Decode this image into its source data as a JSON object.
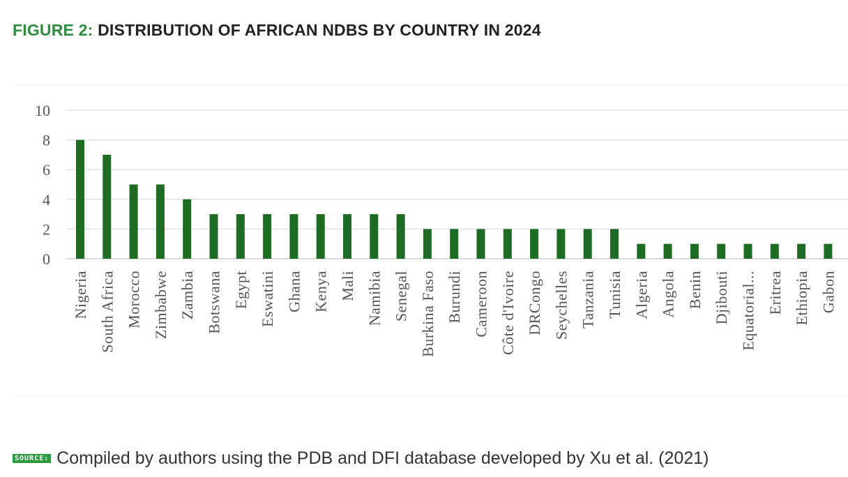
{
  "title": {
    "prefix": "FIGURE 2:",
    "text": "DISTRIBUTION OF AFRICAN NDBS BY COUNTRY IN 2024"
  },
  "source": {
    "label": "SOURCE:",
    "text": "Compiled by authors using the PDB and DFI database developed by Xu et al. (2021)"
  },
  "chart_data": {
    "type": "bar",
    "title": "",
    "xlabel": "",
    "ylabel": "",
    "ylim": [
      0,
      10
    ],
    "yticks": [
      0,
      2,
      4,
      6,
      8,
      10
    ],
    "grid": true,
    "bar_color": "#1e6b23",
    "categories": [
      "Nigeria",
      "South Africa",
      "Morocco",
      "Zimbabwe",
      "Zambia",
      "Botswana",
      "Egypt",
      "Eswatini",
      "Ghana",
      "Kenya",
      "Mali",
      "Namibia",
      "Senegal",
      "Burkina Faso",
      "Burundi",
      "Cameroon",
      "Côte d'Ivoire",
      "DRCongo",
      "Seychelles",
      "Tanzania",
      "Tunisia",
      "Algeria",
      "Angola",
      "Benin",
      "Djibouti",
      "Equatorial...",
      "Eritrea",
      "Ethiopia",
      "Gabon"
    ],
    "values": [
      8,
      7,
      5,
      5,
      4,
      3,
      3,
      3,
      3,
      3,
      3,
      3,
      3,
      2,
      2,
      2,
      2,
      2,
      2,
      2,
      2,
      1,
      1,
      1,
      1,
      1,
      1,
      1,
      1
    ]
  }
}
